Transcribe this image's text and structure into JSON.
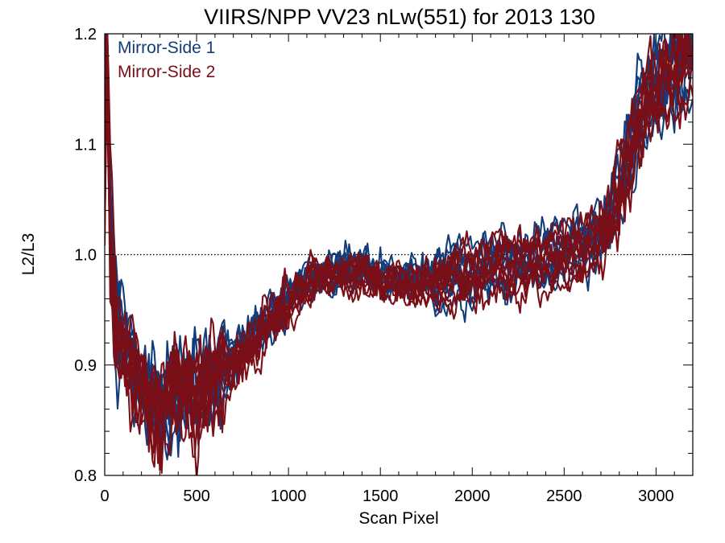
{
  "chart_data": {
    "type": "line",
    "title": "VIIRS/NPP VV23 nLw(551) for 2013 130",
    "xlabel": "Scan Pixel",
    "ylabel": "L2/L3",
    "xlim": [
      0,
      3200
    ],
    "ylim": [
      0.8,
      1.2
    ],
    "x_ticks": [
      0,
      500,
      1000,
      1500,
      2000,
      2500,
      3000
    ],
    "y_ticks": [
      0.8,
      0.9,
      1.0,
      1.1,
      1.2
    ],
    "y_tick_labels": [
      "0.8",
      "0.9",
      "1.0",
      "1.1",
      "1.2"
    ],
    "reference_line": {
      "y": 1.0,
      "style": "dotted"
    },
    "legend_position": "top-left",
    "lines_per_series": 10,
    "x": [
      0,
      10,
      20,
      30,
      40,
      50,
      60,
      80,
      100,
      130,
      160,
      200,
      240,
      280,
      300,
      330,
      360,
      400,
      430,
      460,
      500,
      530,
      560,
      600,
      650,
      700,
      750,
      800,
      850,
      900,
      950,
      1000,
      1050,
      1100,
      1150,
      1200,
      1250,
      1300,
      1350,
      1400,
      1450,
      1500,
      1550,
      1600,
      1650,
      1700,
      1750,
      1800,
      1850,
      1900,
      1950,
      2000,
      2050,
      2100,
      2150,
      2200,
      2250,
      2300,
      2350,
      2400,
      2450,
      2500,
      2550,
      2600,
      2650,
      2700,
      2750,
      2800,
      2850,
      2900,
      2950,
      3000,
      3050,
      3100,
      3150,
      3200
    ],
    "series": [
      {
        "name": "Mirror-Side 1",
        "color": "#123c7a",
        "values": [
          1.06,
          1.2,
          1.12,
          1.03,
          0.99,
          0.96,
          0.94,
          0.93,
          0.92,
          0.91,
          0.9,
          0.88,
          0.87,
          0.865,
          0.86,
          0.87,
          0.88,
          0.885,
          0.89,
          0.885,
          0.875,
          0.88,
          0.885,
          0.89,
          0.9,
          0.905,
          0.915,
          0.925,
          0.935,
          0.945,
          0.955,
          0.963,
          0.97,
          0.977,
          0.981,
          0.984,
          0.985,
          0.986,
          0.987,
          0.987,
          0.985,
          0.982,
          0.98,
          0.978,
          0.977,
          0.976,
          0.977,
          0.978,
          0.98,
          0.983,
          0.985,
          0.986,
          0.988,
          0.99,
          0.992,
          0.993,
          0.994,
          0.996,
          0.997,
          0.999,
          1.0,
          1.002,
          1.005,
          1.008,
          1.013,
          1.02,
          1.035,
          1.06,
          1.09,
          1.12,
          1.14,
          1.15,
          1.16,
          1.17,
          1.18,
          1.19
        ]
      },
      {
        "name": "Mirror-Side 2",
        "color": "#7a0f17",
        "values": [
          1.05,
          1.18,
          1.1,
          1.02,
          0.98,
          0.95,
          0.93,
          0.92,
          0.91,
          0.9,
          0.89,
          0.875,
          0.865,
          0.86,
          0.855,
          0.865,
          0.875,
          0.88,
          0.885,
          0.88,
          0.87,
          0.875,
          0.88,
          0.885,
          0.895,
          0.9,
          0.91,
          0.92,
          0.93,
          0.94,
          0.95,
          0.958,
          0.965,
          0.972,
          0.976,
          0.979,
          0.981,
          0.982,
          0.983,
          0.983,
          0.981,
          0.978,
          0.976,
          0.974,
          0.972,
          0.971,
          0.972,
          0.974,
          0.977,
          0.98,
          0.982,
          0.983,
          0.985,
          0.987,
          0.989,
          0.99,
          0.991,
          0.993,
          0.994,
          0.996,
          0.997,
          0.999,
          1.002,
          1.005,
          1.01,
          1.017,
          1.032,
          1.055,
          1.085,
          1.115,
          1.135,
          1.145,
          1.155,
          1.165,
          1.175,
          1.185
        ]
      }
    ]
  }
}
